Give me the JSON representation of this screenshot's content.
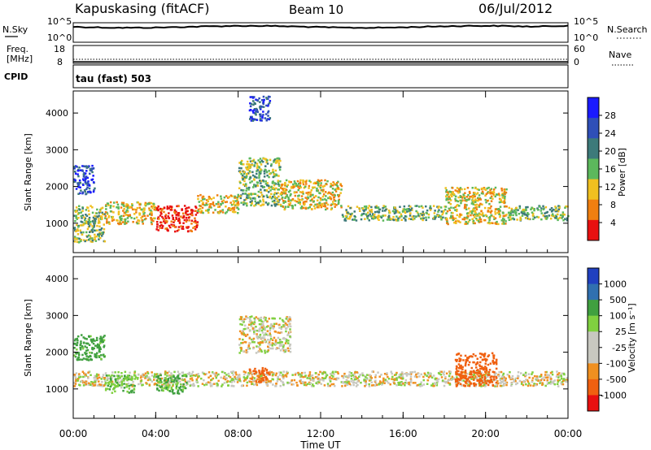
{
  "header": {
    "station": "Kapuskasing (fitACF)",
    "beam": "Beam 10",
    "date": "06/Jul/2012"
  },
  "status_panels": {
    "nsky_label": "N.Sky",
    "nsky_ticks": [
      "10^5",
      "10^0"
    ],
    "nsearch_label": "N.Search",
    "nsearch_ticks": [
      "10^5",
      "10^0"
    ],
    "freq_label": "Freq.",
    "freq_unit": "[MHz]",
    "freq_ticks": [
      "18",
      "8"
    ],
    "nave_label": "Nave",
    "nave_ticks": [
      "60",
      "0"
    ],
    "cpid_label": "CPID",
    "cpid_text": "tau (fast) 503"
  },
  "chart_data": [
    {
      "type": "heatmap",
      "name": "power",
      "ylabel": "Slant Range [km]",
      "ylim": [
        200,
        4600
      ],
      "y_ticks": [
        1000,
        2000,
        3000,
        4000
      ],
      "colorbar_label": "Power [dB]",
      "colorbar_ticks": [
        "4",
        "8",
        "12",
        "16",
        "20",
        "24",
        "28"
      ],
      "colors": [
        "#1a1aff",
        "#2f4fb8",
        "#3d7a7a",
        "#5cb85c",
        "#f0c020",
        "#f07f10",
        "#e81010"
      ],
      "grid": false,
      "echo_bands": [
        {
          "start_hr": 0.0,
          "end_hr": 1.5,
          "range_lo": 500,
          "range_hi": 1500,
          "level": 3
        },
        {
          "start_hr": 0.0,
          "end_hr": 1.0,
          "range_lo": 1800,
          "range_hi": 2600,
          "level": 1
        },
        {
          "start_hr": 1.5,
          "end_hr": 4.0,
          "range_lo": 1000,
          "range_hi": 1600,
          "level": 4
        },
        {
          "start_hr": 4.0,
          "end_hr": 6.0,
          "range_lo": 800,
          "range_hi": 1500,
          "level": 6
        },
        {
          "start_hr": 6.0,
          "end_hr": 8.0,
          "range_lo": 1300,
          "range_hi": 1800,
          "level": 4
        },
        {
          "start_hr": 8.0,
          "end_hr": 10.0,
          "range_lo": 1500,
          "range_hi": 2800,
          "level": 3
        },
        {
          "start_hr": 8.5,
          "end_hr": 9.5,
          "range_lo": 3800,
          "range_hi": 4500,
          "level": 1
        },
        {
          "start_hr": 10.0,
          "end_hr": 13.0,
          "range_lo": 1400,
          "range_hi": 2200,
          "level": 4
        },
        {
          "start_hr": 13.0,
          "end_hr": 18.0,
          "range_lo": 1100,
          "range_hi": 1500,
          "level": 3
        },
        {
          "start_hr": 18.0,
          "end_hr": 21.0,
          "range_lo": 1000,
          "range_hi": 2000,
          "level": 4
        },
        {
          "start_hr": 21.0,
          "end_hr": 24.0,
          "range_lo": 1100,
          "range_hi": 1500,
          "level": 3
        }
      ]
    },
    {
      "type": "heatmap",
      "name": "velocity",
      "ylabel": "Slant Range [km]",
      "ylim": [
        200,
        4600
      ],
      "y_ticks": [
        1000,
        2000,
        3000,
        4000
      ],
      "colorbar_label": "Velocity [m s⁻¹]",
      "colorbar_ticks": [
        "1000",
        "500",
        "100",
        "25",
        "-25",
        "-100",
        "-500",
        "-1000"
      ],
      "colors": [
        "#2040c0",
        "#3070b0",
        "#40a040",
        "#80d040",
        "#c8c8c0",
        "#c8c8c0",
        "#f09020",
        "#f06010",
        "#e81010"
      ],
      "grid": false,
      "echo_bands": [
        {
          "start_hr": 0.0,
          "end_hr": 24.0,
          "range_lo": 1100,
          "range_hi": 1500,
          "velocity": 0
        },
        {
          "start_hr": 0.0,
          "end_hr": 1.5,
          "range_lo": 1800,
          "range_hi": 2500,
          "velocity": 150
        },
        {
          "start_hr": 1.5,
          "end_hr": 3.0,
          "range_lo": 900,
          "range_hi": 1400,
          "velocity": 80
        },
        {
          "start_hr": 4.0,
          "end_hr": 5.5,
          "range_lo": 900,
          "range_hi": 1400,
          "velocity": 120
        },
        {
          "start_hr": 8.5,
          "end_hr": 9.5,
          "range_lo": 1200,
          "range_hi": 1600,
          "velocity": -150
        },
        {
          "start_hr": 8.0,
          "end_hr": 10.5,
          "range_lo": 2000,
          "range_hi": 3000,
          "velocity": 0
        },
        {
          "start_hr": 18.5,
          "end_hr": 20.5,
          "range_lo": 1100,
          "range_hi": 2000,
          "velocity": -200
        }
      ]
    }
  ],
  "x_axis": {
    "label": "Time UT",
    "ticks": [
      "00:00",
      "04:00",
      "08:00",
      "12:00",
      "16:00",
      "20:00",
      "00:00"
    ],
    "range_hr": [
      0,
      24
    ]
  }
}
